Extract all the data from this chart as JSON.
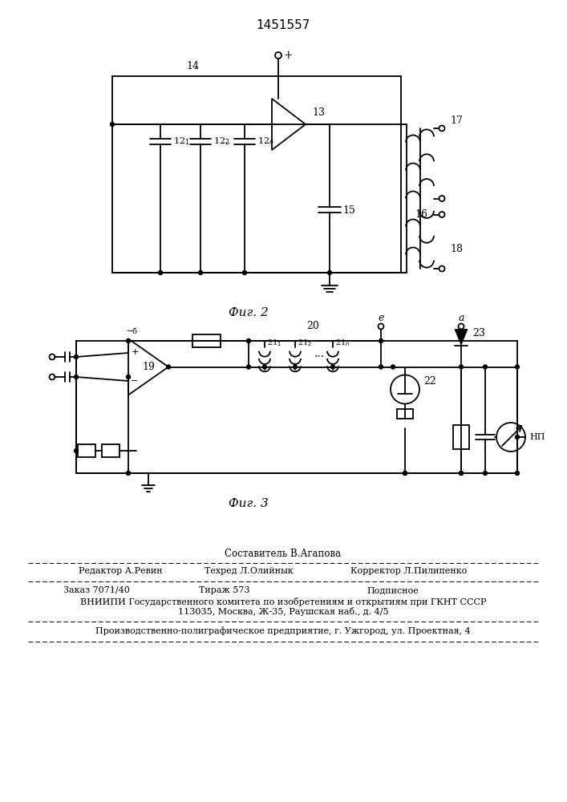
{
  "title": "1451557",
  "fig2_label": "Фиг. 2",
  "fig3_label": "Фиг. 3",
  "bg_color": "#ffffff",
  "footer_line1": "Составитель В.Агапова",
  "footer_line2a": "Редактор А.Ревин",
  "footer_line2b": "Техред Л.Олийнык",
  "footer_line2c": "Корректор Л.Пилипенко",
  "footer_line3a": "Заказ 7071/40",
  "footer_line3b": "Тираж 573",
  "footer_line3c": "Подписное",
  "footer_line4": "ВНИИПИ Государственного комитета по изобретениям и открытиям при ГКНТ СССР",
  "footer_line5": "113035, Москва, Ж-35, Раушская наб., д. 4/5",
  "footer_line6": "Производственно-полиграфическое предприятие, г. Ужгород, ул. Проектная, 4"
}
